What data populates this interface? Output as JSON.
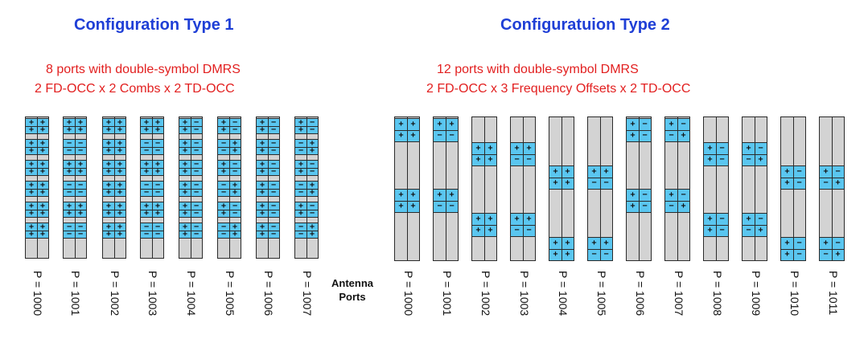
{
  "config1": {
    "title": "Configuration Type 1",
    "line1": "8 ports with double-symbol DMRS",
    "line2": "2 FD-OCC x 2 Combs x 2 TD-OCC",
    "ports": [
      {
        "label": "P = 1000",
        "blocks": [
          [
            "++",
            "++"
          ],
          [
            "++",
            "++"
          ],
          [
            "++",
            "++"
          ],
          [
            "++",
            "++"
          ],
          [
            "++",
            "++"
          ],
          [
            "++",
            "++"
          ]
        ]
      },
      {
        "label": "P = 1001",
        "blocks": [
          [
            "++",
            "++"
          ],
          [
            "--",
            "--"
          ],
          [
            "++",
            "++"
          ],
          [
            "--",
            "--"
          ],
          [
            "++",
            "++"
          ],
          [
            "--",
            "--"
          ]
        ]
      },
      {
        "label": "P = 1002",
        "blocks": [
          [
            "++",
            "++"
          ],
          [
            "++",
            "++"
          ],
          [
            "++",
            "++"
          ],
          [
            "++",
            "++"
          ],
          [
            "++",
            "++"
          ],
          [
            "++",
            "++"
          ]
        ]
      },
      {
        "label": "P = 1003",
        "blocks": [
          [
            "++",
            "++"
          ],
          [
            "--",
            "--"
          ],
          [
            "++",
            "++"
          ],
          [
            "--",
            "--"
          ],
          [
            "++",
            "++"
          ],
          [
            "--",
            "--"
          ]
        ]
      },
      {
        "label": "P = 1004",
        "blocks": [
          [
            "+-",
            "+-"
          ],
          [
            "+-",
            "+-"
          ],
          [
            "+-",
            "+-"
          ],
          [
            "+-",
            "+-"
          ],
          [
            "+-",
            "+-"
          ],
          [
            "+-",
            "+-"
          ]
        ]
      },
      {
        "label": "P = 1005",
        "blocks": [
          [
            "+-",
            "+-"
          ],
          [
            "-+",
            "-+"
          ],
          [
            "+-",
            "+-"
          ],
          [
            "-+",
            "-+"
          ],
          [
            "+-",
            "+-"
          ],
          [
            "-+",
            "-+"
          ]
        ]
      },
      {
        "label": "P = 1006",
        "blocks": [
          [
            "+-",
            "+-"
          ],
          [
            "+-",
            "+-"
          ],
          [
            "+-",
            "+-"
          ],
          [
            "+-",
            "+-"
          ],
          [
            "+-",
            "+-"
          ],
          [
            "+-",
            "+-"
          ]
        ]
      },
      {
        "label": "P = 1007",
        "blocks": [
          [
            "+-",
            "+-"
          ],
          [
            "-+",
            "-+"
          ],
          [
            "+-",
            "+-"
          ],
          [
            "-+",
            "-+"
          ],
          [
            "+-",
            "+-"
          ],
          [
            "-+",
            "-+"
          ]
        ]
      }
    ]
  },
  "config2": {
    "title": "Configuratuion Type 2",
    "line1": "12 ports with double-symbol DMRS",
    "line2": "2 FD-OCC x 3 Frequency Offsets x 2 TD-OCC",
    "ports": [
      {
        "label": "P = 1000",
        "blocks": [
          [
            "++",
            "++"
          ],
          [
            "++",
            "++"
          ]
        ]
      },
      {
        "label": "P = 1001",
        "blocks": [
          [
            "++",
            "--"
          ],
          [
            "++",
            "--"
          ]
        ]
      },
      {
        "label": "P = 1002",
        "blocks": [
          [
            "++",
            "++"
          ],
          [
            "++",
            "++"
          ]
        ]
      },
      {
        "label": "P = 1003",
        "blocks": [
          [
            "++",
            "--"
          ],
          [
            "++",
            "--"
          ]
        ]
      },
      {
        "label": "P = 1004",
        "blocks": [
          [
            "++",
            "++"
          ],
          [
            "++",
            "++"
          ]
        ]
      },
      {
        "label": "P = 1005",
        "blocks": [
          [
            "++",
            "--"
          ],
          [
            "++",
            "--"
          ]
        ]
      },
      {
        "label": "P = 1006",
        "blocks": [
          [
            "+-",
            "+-"
          ],
          [
            "+-",
            "+-"
          ]
        ]
      },
      {
        "label": "P = 1007",
        "blocks": [
          [
            "+-",
            "-+"
          ],
          [
            "+-",
            "-+"
          ]
        ]
      },
      {
        "label": "P = 1008",
        "blocks": [
          [
            "+-",
            "+-"
          ],
          [
            "+-",
            "+-"
          ]
        ]
      },
      {
        "label": "P = 1009",
        "blocks": [
          [
            "+-",
            "-+"
          ],
          [
            "+-",
            "-+"
          ]
        ]
      },
      {
        "label": "P = 1010",
        "blocks": [
          [
            "+-",
            "+-"
          ],
          [
            "+-",
            "+-"
          ]
        ]
      },
      {
        "label": "P = 1011",
        "blocks": [
          [
            "+-",
            "-+"
          ],
          [
            "+-",
            "-+"
          ]
        ]
      }
    ]
  },
  "antenna_label": {
    "line1": "Antenna",
    "line2": "Ports"
  },
  "colors": {
    "title": "#1f3fd6",
    "subtitle": "#e21f1f",
    "dmrs": "#5ac6f0",
    "column": "#d3d3d3"
  }
}
